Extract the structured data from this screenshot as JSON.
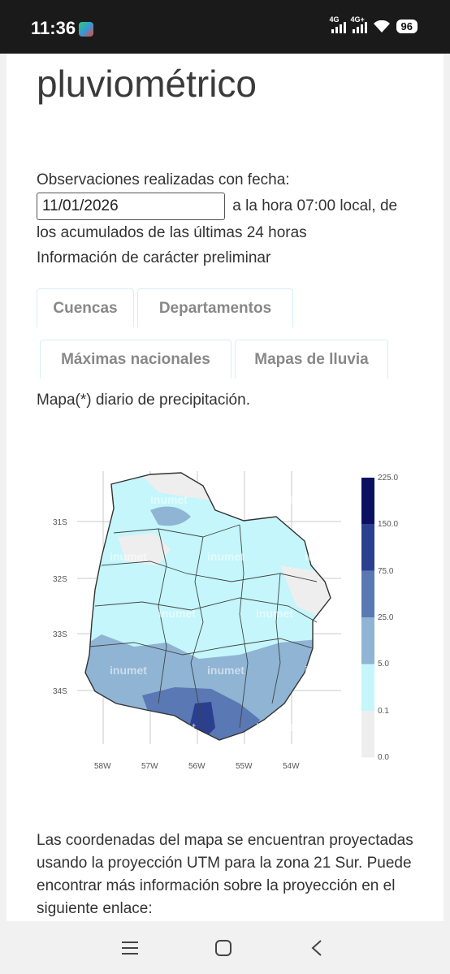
{
  "status_bar": {
    "time": "11:36",
    "net1": "4G",
    "net2": "4G+",
    "battery": "96"
  },
  "page_title": "pluviométrico",
  "observation": {
    "prefix": "Observaciones realizadas con fecha:",
    "date_value": "11/01/2026",
    "suffix": "a la hora 07:00 local, de los acumulados de las últimas 24 horas",
    "note": "Información de carácter preliminar"
  },
  "tabs": [
    {
      "label": "Cuencas"
    },
    {
      "label": "Departamentos"
    },
    {
      "label": "Máximas nacionales"
    },
    {
      "label": "Mapas de lluvia"
    }
  ],
  "map_description": "Mapa(*) diario de precipitación.",
  "map": {
    "watermark": "inumet",
    "lat_labels": [
      "31S",
      "32S",
      "33S",
      "34S"
    ],
    "lon_labels": [
      "58W",
      "57W",
      "56W",
      "55W",
      "54W"
    ],
    "legend_values": [
      "225.0",
      "150.0",
      "75.0",
      "25.0",
      "5.0",
      "0.1",
      "0.0"
    ],
    "legend_colors": [
      "#0b1160",
      "#2b3f8f",
      "#5a78b3",
      "#8fb4d4",
      "#c4f6fb",
      "#eeeeee"
    ]
  },
  "coords_text": "Las coordenadas del mapa se encuentran proyectadas usando la proyección UTM para la zona 21 Sur. Puede encontrar más información sobre la proyección en el siguiente enlace:",
  "nav": {
    "recents": "recents-icon",
    "home": "home-icon",
    "back": "back-icon"
  }
}
